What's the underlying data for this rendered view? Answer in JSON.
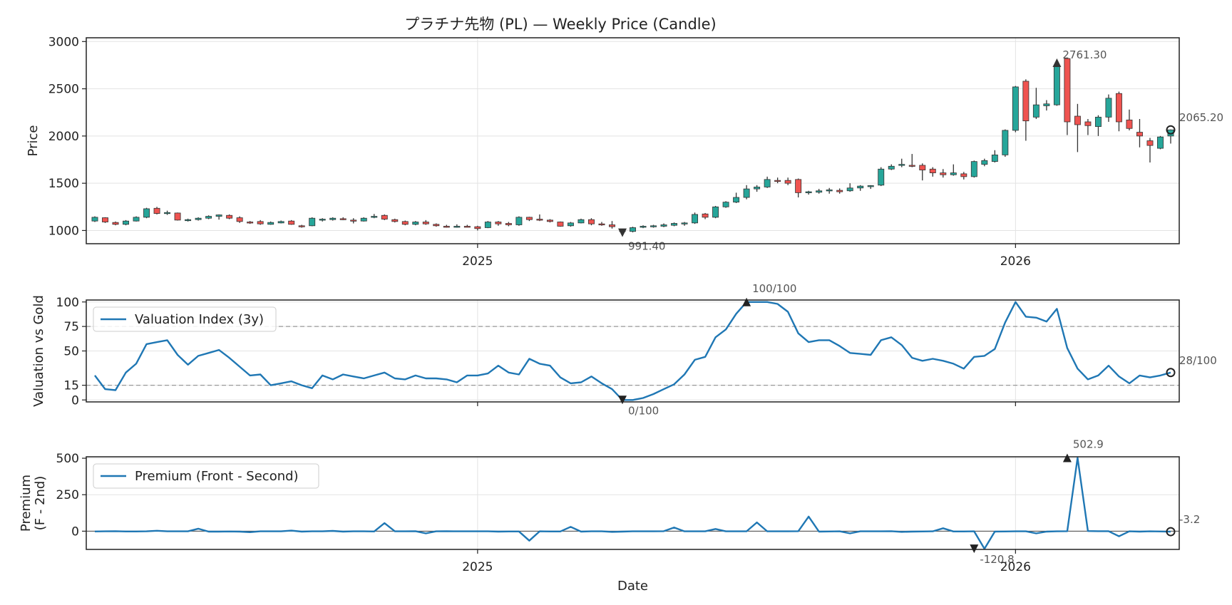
{
  "chart_data": [
    {
      "type": "candlestick",
      "title": "プラチナ先物 (PL) — Weekly Price (Candle)",
      "ylabel": "Price",
      "ylim": [
        860,
        3040
      ],
      "yticks": [
        1000,
        1500,
        2000,
        2500,
        3000
      ],
      "xticks": [
        {
          "label": "2025",
          "index": 37
        },
        {
          "label": "2026",
          "index": 89
        }
      ],
      "grid": true,
      "colors": {
        "up": "#26a69a",
        "down": "#ef5350",
        "wick": "#333333"
      },
      "candles": [
        [
          1100,
          1150,
          1090,
          1140
        ],
        [
          1135,
          1140,
          1080,
          1090
        ],
        [
          1085,
          1095,
          1055,
          1065
        ],
        [
          1065,
          1110,
          1055,
          1100
        ],
        [
          1100,
          1150,
          1095,
          1140
        ],
        [
          1140,
          1240,
          1130,
          1230
        ],
        [
          1235,
          1250,
          1170,
          1180
        ],
        [
          1180,
          1210,
          1165,
          1190
        ],
        [
          1185,
          1190,
          1105,
          1110
        ],
        [
          1110,
          1125,
          1095,
          1115
        ],
        [
          1115,
          1140,
          1105,
          1130
        ],
        [
          1130,
          1160,
          1120,
          1150
        ],
        [
          1150,
          1170,
          1115,
          1165
        ],
        [
          1160,
          1170,
          1120,
          1130
        ],
        [
          1135,
          1150,
          1080,
          1095
        ],
        [
          1090,
          1100,
          1070,
          1085
        ],
        [
          1095,
          1110,
          1060,
          1070
        ],
        [
          1065,
          1095,
          1060,
          1085
        ],
        [
          1080,
          1105,
          1075,
          1095
        ],
        [
          1100,
          1110,
          1060,
          1065
        ],
        [
          1050,
          1060,
          1030,
          1040
        ],
        [
          1050,
          1140,
          1045,
          1130
        ],
        [
          1110,
          1130,
          1095,
          1120
        ],
        [
          1115,
          1140,
          1105,
          1130
        ],
        [
          1125,
          1140,
          1110,
          1120
        ],
        [
          1110,
          1130,
          1075,
          1100
        ],
        [
          1100,
          1140,
          1095,
          1130
        ],
        [
          1140,
          1175,
          1130,
          1150
        ],
        [
          1160,
          1170,
          1110,
          1120
        ],
        [
          1115,
          1125,
          1085,
          1095
        ],
        [
          1095,
          1105,
          1055,
          1065
        ],
        [
          1065,
          1100,
          1055,
          1090
        ],
        [
          1090,
          1110,
          1060,
          1070
        ],
        [
          1065,
          1075,
          1040,
          1050
        ],
        [
          1045,
          1060,
          1030,
          1040
        ],
        [
          1040,
          1065,
          1030,
          1045
        ],
        [
          1045,
          1060,
          1035,
          1040
        ],
        [
          1040,
          1050,
          1000,
          1020
        ],
        [
          1030,
          1100,
          1025,
          1090
        ],
        [
          1090,
          1100,
          1050,
          1070
        ],
        [
          1075,
          1090,
          1045,
          1060
        ],
        [
          1060,
          1150,
          1050,
          1140
        ],
        [
          1140,
          1145,
          1100,
          1115
        ],
        [
          1120,
          1170,
          1100,
          1110
        ],
        [
          1110,
          1120,
          1085,
          1095
        ],
        [
          1090,
          1095,
          1040,
          1045
        ],
        [
          1050,
          1090,
          1040,
          1080
        ],
        [
          1080,
          1125,
          1075,
          1115
        ],
        [
          1115,
          1130,
          1055,
          1070
        ],
        [
          1070,
          1090,
          1050,
          1060
        ],
        [
          1060,
          1100,
          1020,
          1040
        ],
        [
          991.4,
          1010,
          991.4,
          1000
        ],
        [
          990,
          1040,
          980,
          1030
        ],
        [
          1035,
          1055,
          1025,
          1045
        ],
        [
          1040,
          1060,
          1030,
          1050
        ],
        [
          1045,
          1075,
          1035,
          1060
        ],
        [
          1055,
          1085,
          1045,
          1075
        ],
        [
          1070,
          1090,
          1050,
          1080
        ],
        [
          1080,
          1190,
          1070,
          1170
        ],
        [
          1175,
          1185,
          1120,
          1140
        ],
        [
          1140,
          1260,
          1130,
          1250
        ],
        [
          1250,
          1310,
          1240,
          1300
        ],
        [
          1300,
          1400,
          1290,
          1350
        ],
        [
          1350,
          1480,
          1330,
          1440
        ],
        [
          1440,
          1480,
          1410,
          1460
        ],
        [
          1460,
          1570,
          1450,
          1540
        ],
        [
          1530,
          1560,
          1500,
          1520
        ],
        [
          1530,
          1560,
          1480,
          1500
        ],
        [
          1540,
          1550,
          1350,
          1400
        ],
        [
          1400,
          1420,
          1380,
          1410
        ],
        [
          1405,
          1440,
          1390,
          1420
        ],
        [
          1420,
          1450,
          1390,
          1430
        ],
        [
          1425,
          1445,
          1390,
          1410
        ],
        [
          1420,
          1500,
          1410,
          1450
        ],
        [
          1450,
          1480,
          1420,
          1470
        ],
        [
          1465,
          1480,
          1440,
          1475
        ],
        [
          1480,
          1670,
          1470,
          1650
        ],
        [
          1650,
          1700,
          1640,
          1680
        ],
        [
          1690,
          1760,
          1670,
          1700
        ],
        [
          1690,
          1810,
          1670,
          1680
        ],
        [
          1690,
          1710,
          1530,
          1640
        ],
        [
          1650,
          1670,
          1570,
          1610
        ],
        [
          1610,
          1650,
          1560,
          1590
        ],
        [
          1590,
          1700,
          1580,
          1610
        ],
        [
          1600,
          1620,
          1540,
          1570
        ],
        [
          1570,
          1740,
          1560,
          1730
        ],
        [
          1700,
          1760,
          1680,
          1740
        ],
        [
          1730,
          1850,
          1720,
          1800
        ],
        [
          1800,
          2070,
          1780,
          2060
        ],
        [
          2060,
          2530,
          2040,
          2520
        ],
        [
          2580,
          2600,
          1950,
          2160
        ],
        [
          2200,
          2510,
          2180,
          2330
        ],
        [
          2320,
          2380,
          2270,
          2340
        ],
        [
          2330,
          2761.3,
          2320,
          2740
        ],
        [
          2820,
          2830,
          2010,
          2150
        ],
        [
          2210,
          2340,
          1830,
          2120
        ],
        [
          2150,
          2180,
          2010,
          2110
        ],
        [
          2100,
          2220,
          2000,
          2200
        ],
        [
          2200,
          2440,
          2150,
          2400
        ],
        [
          2450,
          2470,
          2050,
          2150
        ],
        [
          2170,
          2280,
          2060,
          2080
        ],
        [
          2040,
          2180,
          1880,
          2000
        ],
        [
          1950,
          1980,
          1720,
          1900
        ],
        [
          1870,
          2000,
          1860,
          1990
        ],
        [
          2000,
          2070,
          1920,
          2065.2
        ]
      ],
      "annotations": [
        {
          "label": "2761.30",
          "index": 93,
          "value": 2761.3,
          "type": "max"
        },
        {
          "label": "991.40",
          "index": 51,
          "value": 991.4,
          "type": "min"
        },
        {
          "label": "2065.20",
          "index": 104,
          "value": 2065.2,
          "type": "last"
        }
      ]
    },
    {
      "type": "line",
      "ylabel": "Valuation vs Gold",
      "ylim": [
        -2,
        102
      ],
      "yticks": [
        0,
        15,
        50,
        75,
        100
      ],
      "reference_lines": [
        15,
        75
      ],
      "grid": true,
      "legend": "top-left",
      "series": [
        {
          "name": "Valuation Index (3y)",
          "color": "#1f77b4",
          "values": [
            25,
            11,
            10,
            28,
            37,
            57,
            59,
            61,
            46,
            36,
            45,
            48,
            51,
            43,
            34,
            25,
            26,
            15,
            17,
            19,
            15,
            12,
            25,
            21,
            26,
            24,
            22,
            25,
            28,
            22,
            21,
            25,
            22,
            22,
            21,
            18,
            25,
            25,
            27,
            35,
            28,
            26,
            42,
            37,
            35,
            23,
            17,
            18,
            24,
            17,
            11,
            0,
            0,
            2,
            6,
            11,
            16,
            26,
            41,
            44,
            64,
            72,
            88,
            100,
            100,
            100,
            98,
            90,
            68,
            59,
            61,
            61,
            55,
            48,
            47,
            46,
            61,
            64,
            56,
            43,
            40,
            42,
            40,
            37,
            32,
            44,
            45,
            52,
            79,
            100,
            85,
            84,
            80,
            93,
            53,
            32,
            21,
            25,
            35,
            24,
            17,
            25,
            23,
            25,
            28
          ]
        }
      ],
      "annotations": [
        {
          "label": "100/100",
          "index": 63,
          "value": 100,
          "type": "max"
        },
        {
          "label": "0/100",
          "index": 51,
          "value": 0,
          "type": "min"
        },
        {
          "label": "28/100",
          "index": 104,
          "value": 28,
          "type": "last"
        }
      ]
    },
    {
      "type": "line",
      "ylabel": [
        "Premium",
        "(F - 2nd)"
      ],
      "xlabel": "Date",
      "ylim": [
        -125,
        510
      ],
      "yticks": [
        0,
        250,
        500
      ],
      "xticks": [
        {
          "label": "2025",
          "index": 37
        },
        {
          "label": "2026",
          "index": 89
        }
      ],
      "grid": true,
      "legend": "top-left",
      "series": [
        {
          "name": "Premium (Front - Second)",
          "color": "#1f77b4",
          "values": [
            -2,
            -1,
            0,
            -2,
            -2,
            -1,
            3,
            -1,
            -1,
            -1,
            17,
            -3,
            -3,
            -2,
            -3,
            -7,
            -1,
            -1,
            -1,
            4,
            -3,
            -1,
            -1,
            2,
            -3,
            -1,
            -1,
            -2,
            55,
            -1,
            -1,
            0,
            -15,
            -1,
            0,
            -1,
            -1,
            -1,
            -1,
            -3,
            -2,
            -2,
            -65,
            -1,
            -2,
            -2,
            30,
            -3,
            -1,
            -1,
            -5,
            -3,
            -1,
            -1,
            -1,
            0,
            25,
            -1,
            -1,
            -1,
            15,
            -1,
            -1,
            -1,
            60,
            -1,
            -1,
            -1,
            0,
            100,
            -3,
            -2,
            -1,
            -15,
            -1,
            -1,
            -1,
            0,
            -5,
            -3,
            -2,
            -1,
            20,
            -2,
            -2,
            -1,
            -120.8,
            -3,
            -2,
            -1,
            -1,
            -15,
            -3,
            -1,
            0,
            502.9,
            1,
            0,
            0,
            -35,
            -1,
            -3,
            -1,
            -2,
            -3.2
          ]
        }
      ],
      "annotations": [
        {
          "label": "502.9",
          "index": 94,
          "value": 502.9,
          "type": "max"
        },
        {
          "label": "-120.8",
          "index": 85,
          "value": -120.8,
          "type": "min"
        },
        {
          "label": "-3.2",
          "index": 104,
          "value": -3.2,
          "type": "last"
        }
      ]
    }
  ]
}
